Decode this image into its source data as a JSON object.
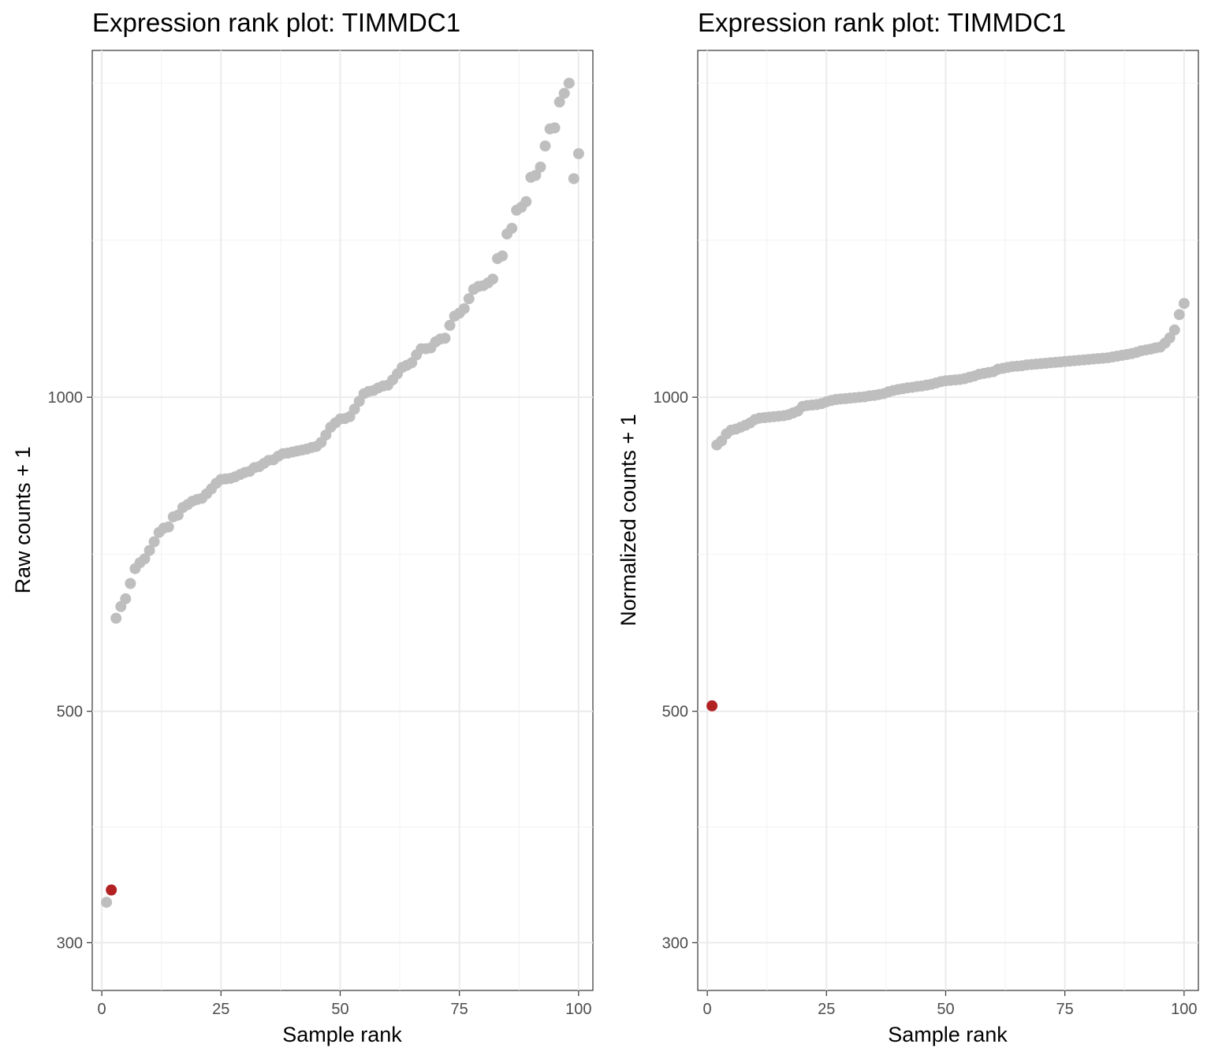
{
  "chart_data": [
    {
      "type": "scatter",
      "title": "Expression rank plot: TIMMDC1",
      "xlabel": "Sample rank",
      "ylabel": "Raw counts + 1",
      "xlim": [
        -2,
        103
      ],
      "ylim": [
        270,
        2150
      ],
      "yscale": "log",
      "xticks": [
        0,
        25,
        50,
        75,
        100
      ],
      "yticks": [
        300,
        500,
        1000
      ],
      "grid": true,
      "legend": "none",
      "point_color": "#bebebe",
      "highlight_color": "#b22222",
      "x": [
        1,
        2,
        3,
        4,
        5,
        6,
        7,
        8,
        9,
        10,
        11,
        12,
        13,
        14,
        15,
        16,
        17,
        18,
        19,
        20,
        21,
        22,
        23,
        24,
        25,
        26,
        27,
        28,
        29,
        30,
        31,
        32,
        33,
        34,
        35,
        36,
        37,
        38,
        39,
        40,
        41,
        42,
        43,
        44,
        45,
        46,
        47,
        48,
        49,
        50,
        51,
        52,
        53,
        54,
        55,
        56,
        57,
        58,
        59,
        60,
        61,
        62,
        63,
        64,
        65,
        66,
        67,
        68,
        69,
        70,
        71,
        72,
        73,
        74,
        75,
        76,
        77,
        78,
        79,
        80,
        81,
        82,
        83,
        84,
        85,
        86,
        87,
        88,
        89,
        90,
        91,
        92,
        93,
        94,
        95,
        96,
        97,
        98,
        99,
        100
      ],
      "y": [
        328,
        337,
        614,
        630,
        641,
        663,
        685,
        694,
        700,
        713,
        727,
        742,
        749,
        751,
        768,
        771,
        784,
        789,
        795,
        798,
        800,
        808,
        817,
        827,
        834,
        835,
        836,
        839,
        843,
        847,
        849,
        856,
        858,
        864,
        870,
        871,
        878,
        883,
        884,
        886,
        888,
        890,
        892,
        895,
        897,
        905,
        920,
        936,
        945,
        953,
        954,
        958,
        974,
        991,
        1008,
        1013,
        1015,
        1021,
        1025,
        1027,
        1039,
        1053,
        1068,
        1073,
        1079,
        1098,
        1113,
        1113,
        1115,
        1130,
        1137,
        1139,
        1172,
        1196,
        1204,
        1216,
        1243,
        1269,
        1277,
        1279,
        1287,
        1298,
        1358,
        1366,
        1434,
        1452,
        1511,
        1521,
        1540,
        1625,
        1632,
        1662,
        1741,
        1808,
        1812,
        1919,
        1956,
        2000,
        1620,
        1712
      ],
      "highlight": [
        2
      ]
    },
    {
      "type": "scatter",
      "title": "Expression rank plot: TIMMDC1",
      "xlabel": "Sample rank",
      "ylabel": "Normalized counts + 1",
      "xlim": [
        -2,
        103
      ],
      "ylim": [
        270,
        2150
      ],
      "yscale": "log",
      "xticks": [
        0,
        25,
        50,
        75,
        100
      ],
      "yticks": [
        300,
        500,
        1000
      ],
      "grid": true,
      "legend": "none",
      "point_color": "#bebebe",
      "highlight_color": "#b22222",
      "x": [
        1,
        2,
        3,
        4,
        5,
        6,
        7,
        8,
        9,
        10,
        11,
        12,
        13,
        14,
        15,
        16,
        17,
        18,
        19,
        20,
        21,
        22,
        23,
        24,
        25,
        26,
        27,
        28,
        29,
        30,
        31,
        32,
        33,
        34,
        35,
        36,
        37,
        38,
        39,
        40,
        41,
        42,
        43,
        44,
        45,
        46,
        47,
        48,
        49,
        50,
        51,
        52,
        53,
        54,
        55,
        56,
        57,
        58,
        59,
        60,
        61,
        62,
        63,
        64,
        65,
        66,
        67,
        68,
        69,
        70,
        71,
        72,
        73,
        74,
        75,
        76,
        77,
        78,
        79,
        80,
        81,
        82,
        83,
        84,
        85,
        86,
        87,
        88,
        89,
        90,
        91,
        92,
        93,
        94,
        95,
        96,
        97,
        98,
        99,
        100
      ],
      "y": [
        506,
        900,
        908,
        922,
        930,
        932,
        936,
        940,
        945,
        952,
        955,
        956,
        957,
        958,
        959,
        960,
        962,
        966,
        970,
        980,
        982,
        983,
        984,
        986,
        990,
        993,
        995,
        996,
        997,
        998,
        999,
        1000,
        1001,
        1003,
        1004,
        1006,
        1008,
        1012,
        1015,
        1017,
        1019,
        1021,
        1022,
        1024,
        1025,
        1027,
        1029,
        1032,
        1035,
        1037,
        1038,
        1039,
        1040,
        1042,
        1045,
        1048,
        1052,
        1054,
        1056,
        1058,
        1064,
        1066,
        1068,
        1070,
        1071,
        1072,
        1074,
        1075,
        1076,
        1077,
        1078,
        1079,
        1080,
        1081,
        1082,
        1083,
        1084,
        1085,
        1086,
        1087,
        1088,
        1089,
        1090,
        1091,
        1093,
        1095,
        1097,
        1099,
        1101,
        1104,
        1108,
        1110,
        1112,
        1115,
        1117,
        1127,
        1140,
        1160,
        1200,
        1230
      ]
    }
  ]
}
